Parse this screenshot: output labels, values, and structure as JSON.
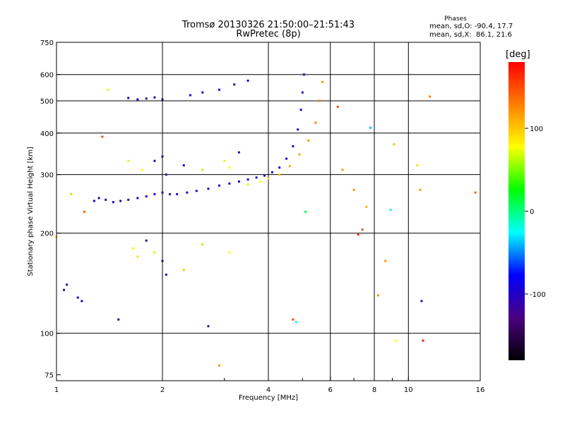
{
  "chart_data": {
    "type": "scatter",
    "title": "Tromsø 20130326 21:50:00–21:51:43",
    "subtitle": "RwPretec (8p)",
    "xlabel": "Frequency [MHz]",
    "ylabel": "Stationary phase Virtual Height [km]",
    "x_scale": "log",
    "y_scale": "log",
    "xlim": [
      1,
      16
    ],
    "ylim": [
      72,
      750
    ],
    "x_ticks": [
      1,
      2,
      4,
      6,
      8,
      10,
      16
    ],
    "x_minor_ticks": [
      3,
      5,
      7,
      9
    ],
    "y_ticks": [
      75,
      100,
      200,
      300,
      400,
      500,
      600,
      750
    ],
    "x_gridlines": [
      2,
      4,
      6,
      8,
      10
    ],
    "y_gridlines": [
      100,
      200,
      300,
      400,
      500,
      600
    ],
    "grid": true,
    "stats": {
      "heading": "Phases",
      "o_line": "mean, sd,O: -90.4, 17.7",
      "x_line": "mean, sd,X:  86.1, 21.6"
    },
    "colorbar": {
      "label": "[deg]",
      "range": [
        -180,
        180
      ],
      "ticks": [
        -100,
        0,
        100
      ],
      "colors": [
        "#000000",
        "#4b0082",
        "#0000ff",
        "#00ffff",
        "#00ff00",
        "#ffff00",
        "#ff7f00",
        "#ff0000"
      ]
    },
    "series": [
      {
        "name": "",
        "color_scale": "phase_deg",
        "points": [
          [
            1.05,
            135,
            -115
          ],
          [
            1.07,
            140,
            -110
          ],
          [
            1.15,
            128,
            -105
          ],
          [
            1.18,
            125,
            -100
          ],
          [
            1.1,
            262,
            60
          ],
          [
            1.28,
            250,
            -110
          ],
          [
            1.32,
            255,
            -105
          ],
          [
            1.38,
            252,
            -100
          ],
          [
            1.45,
            248,
            -100
          ],
          [
            1.52,
            250,
            -105
          ],
          [
            1.6,
            252,
            -110
          ],
          [
            1.7,
            255,
            -100
          ],
          [
            1.8,
            258,
            -95
          ],
          [
            1.9,
            262,
            -100
          ],
          [
            2.0,
            265,
            -105
          ],
          [
            2.1,
            262,
            -110
          ],
          [
            2.2,
            262,
            -100
          ],
          [
            2.35,
            265,
            -95
          ],
          [
            2.5,
            268,
            -100
          ],
          [
            2.7,
            272,
            -100
          ],
          [
            2.9,
            278,
            -95
          ],
          [
            3.1,
            282,
            -100
          ],
          [
            3.3,
            286,
            -105
          ],
          [
            3.5,
            290,
            -100
          ],
          [
            3.7,
            294,
            -95
          ],
          [
            3.9,
            298,
            -100
          ],
          [
            4.1,
            305,
            -100
          ],
          [
            4.3,
            315,
            -100
          ],
          [
            4.5,
            335,
            -100
          ],
          [
            4.7,
            365,
            -105
          ],
          [
            4.85,
            410,
            -100
          ],
          [
            4.95,
            470,
            -95
          ],
          [
            5.0,
            530,
            -100
          ],
          [
            5.05,
            600,
            -105
          ],
          [
            3.5,
            280,
            70
          ],
          [
            3.8,
            286,
            80
          ],
          [
            4.0,
            292,
            90
          ],
          [
            4.3,
            300,
            100
          ],
          [
            4.6,
            318,
            110
          ],
          [
            4.9,
            345,
            115
          ],
          [
            5.2,
            380,
            120
          ],
          [
            5.45,
            430,
            125
          ],
          [
            5.6,
            500,
            130
          ],
          [
            5.7,
            570,
            120
          ],
          [
            1.6,
            510,
            -105
          ],
          [
            1.7,
            505,
            -100
          ],
          [
            1.8,
            508,
            -110
          ],
          [
            1.9,
            512,
            -100
          ],
          [
            2.0,
            505,
            -105
          ],
          [
            2.4,
            520,
            -100
          ],
          [
            2.6,
            530,
            -95
          ],
          [
            2.9,
            540,
            -100
          ],
          [
            3.2,
            560,
            -105
          ],
          [
            3.5,
            575,
            -100
          ],
          [
            1.6,
            330,
            70
          ],
          [
            1.75,
            310,
            80
          ],
          [
            1.9,
            330,
            -100
          ],
          [
            2.0,
            340,
            -105
          ],
          [
            2.05,
            300,
            -110
          ],
          [
            2.3,
            320,
            -100
          ],
          [
            2.6,
            310,
            60
          ],
          [
            3.0,
            330,
            70
          ],
          [
            3.1,
            315,
            80
          ],
          [
            3.3,
            350,
            -100
          ],
          [
            1.65,
            180,
            80
          ],
          [
            1.7,
            170,
            90
          ],
          [
            1.8,
            190,
            -100
          ],
          [
            1.9,
            175,
            70
          ],
          [
            2.0,
            165,
            -110
          ],
          [
            2.05,
            150,
            -105
          ],
          [
            2.3,
            155,
            100
          ],
          [
            3.1,
            175,
            80
          ],
          [
            2.6,
            185,
            60
          ],
          [
            1.2,
            232,
            140
          ],
          [
            1.35,
            390,
            150
          ],
          [
            1.4,
            540,
            70
          ],
          [
            1.0,
            195,
            100
          ],
          [
            1.5,
            110,
            -100
          ],
          [
            2.7,
            105,
            -120
          ],
          [
            2.9,
            80,
            120
          ],
          [
            4.7,
            110,
            150
          ],
          [
            4.8,
            108,
            -20
          ],
          [
            5.1,
            232,
            10
          ],
          [
            6.3,
            480,
            150
          ],
          [
            6.5,
            310,
            120
          ],
          [
            7.0,
            270,
            120
          ],
          [
            7.4,
            205,
            150
          ],
          [
            7.6,
            240,
            110
          ],
          [
            7.8,
            415,
            -40
          ],
          [
            8.2,
            130,
            120
          ],
          [
            8.6,
            165,
            120
          ],
          [
            8.9,
            235,
            -20
          ],
          [
            9.1,
            370,
            100
          ],
          [
            9.2,
            95,
            80
          ],
          [
            10.8,
            270,
            120
          ],
          [
            10.9,
            125,
            -110
          ],
          [
            11.0,
            95,
            170
          ],
          [
            11.5,
            515,
            130
          ],
          [
            15.5,
            265,
            140
          ],
          [
            7.2,
            198,
            160
          ],
          [
            10.6,
            320,
            90
          ]
        ]
      }
    ]
  }
}
